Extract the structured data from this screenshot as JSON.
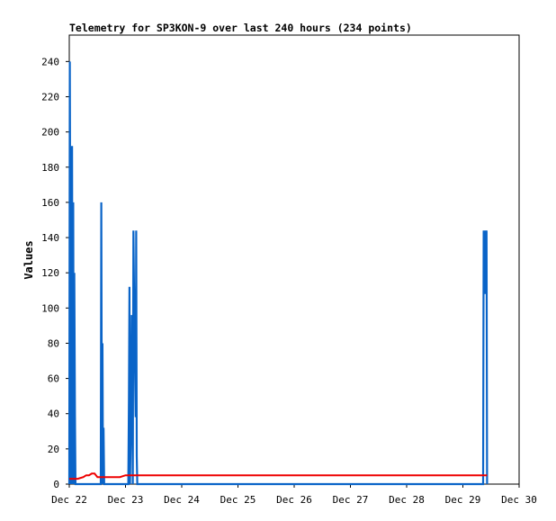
{
  "chart_data": {
    "type": "line",
    "title": "Telemetry for SP3KON-9 over last 240 hours (234 points)",
    "xlabel": "",
    "ylabel": "Values",
    "ylim": [
      0,
      255
    ],
    "yticks": [
      0,
      20,
      40,
      60,
      80,
      100,
      120,
      140,
      160,
      180,
      200,
      220,
      240
    ],
    "xlim": [
      0,
      8
    ],
    "xticks": [
      {
        "x": 0,
        "label": "Dec 22"
      },
      {
        "x": 1,
        "label": "Dec 23"
      },
      {
        "x": 2,
        "label": "Dec 24"
      },
      {
        "x": 3,
        "label": "Dec 25"
      },
      {
        "x": 4,
        "label": "Dec 26"
      },
      {
        "x": 5,
        "label": "Dec 27"
      },
      {
        "x": 6,
        "label": "Dec 28"
      },
      {
        "x": 7,
        "label": "Dec 29"
      },
      {
        "x": 8,
        "label": "Dec 30"
      }
    ],
    "grid": false,
    "legend": "none",
    "series": [
      {
        "color": "#0a64c8",
        "points": [
          [
            0.0,
            0
          ],
          [
            0.01,
            240
          ],
          [
            0.02,
            96
          ],
          [
            0.03,
            0
          ],
          [
            0.04,
            184
          ],
          [
            0.05,
            192
          ],
          [
            0.06,
            0
          ],
          [
            0.07,
            160
          ],
          [
            0.08,
            0
          ],
          [
            0.09,
            120
          ],
          [
            0.1,
            40
          ],
          [
            0.11,
            0
          ],
          [
            0.56,
            0
          ],
          [
            0.57,
            160
          ],
          [
            0.58,
            0
          ],
          [
            0.59,
            80
          ],
          [
            0.6,
            0
          ],
          [
            0.61,
            32
          ],
          [
            0.62,
            0
          ],
          [
            1.05,
            0
          ],
          [
            1.06,
            48
          ],
          [
            1.07,
            112
          ],
          [
            1.08,
            0
          ],
          [
            1.1,
            48
          ],
          [
            1.11,
            96
          ],
          [
            1.12,
            48
          ],
          [
            1.13,
            0
          ],
          [
            1.14,
            144
          ],
          [
            1.15,
            115
          ],
          [
            1.16,
            88
          ],
          [
            1.17,
            64
          ],
          [
            1.18,
            38
          ],
          [
            1.19,
            144
          ],
          [
            1.2,
            16
          ],
          [
            1.21,
            0
          ],
          [
            7.36,
            0
          ],
          [
            7.37,
            144
          ],
          [
            7.38,
            136
          ],
          [
            7.39,
            108
          ],
          [
            7.4,
            144
          ],
          [
            7.41,
            132
          ],
          [
            7.42,
            144
          ],
          [
            7.43,
            0
          ]
        ]
      },
      {
        "color": "#ee0000",
        "points": [
          [
            0.0,
            3
          ],
          [
            0.05,
            3
          ],
          [
            0.1,
            3
          ],
          [
            0.15,
            3
          ],
          [
            0.25,
            4
          ],
          [
            0.3,
            5
          ],
          [
            0.35,
            5
          ],
          [
            0.4,
            6
          ],
          [
            0.45,
            6
          ],
          [
            0.5,
            4
          ],
          [
            0.55,
            4
          ],
          [
            0.6,
            4
          ],
          [
            0.7,
            4
          ],
          [
            0.8,
            4
          ],
          [
            0.9,
            4
          ],
          [
            1.0,
            5
          ],
          [
            1.2,
            5
          ],
          [
            2.0,
            5
          ],
          [
            3.0,
            5
          ],
          [
            4.0,
            5
          ],
          [
            5.0,
            5
          ],
          [
            6.0,
            5
          ],
          [
            7.0,
            5
          ],
          [
            7.43,
            5
          ]
        ]
      }
    ]
  }
}
